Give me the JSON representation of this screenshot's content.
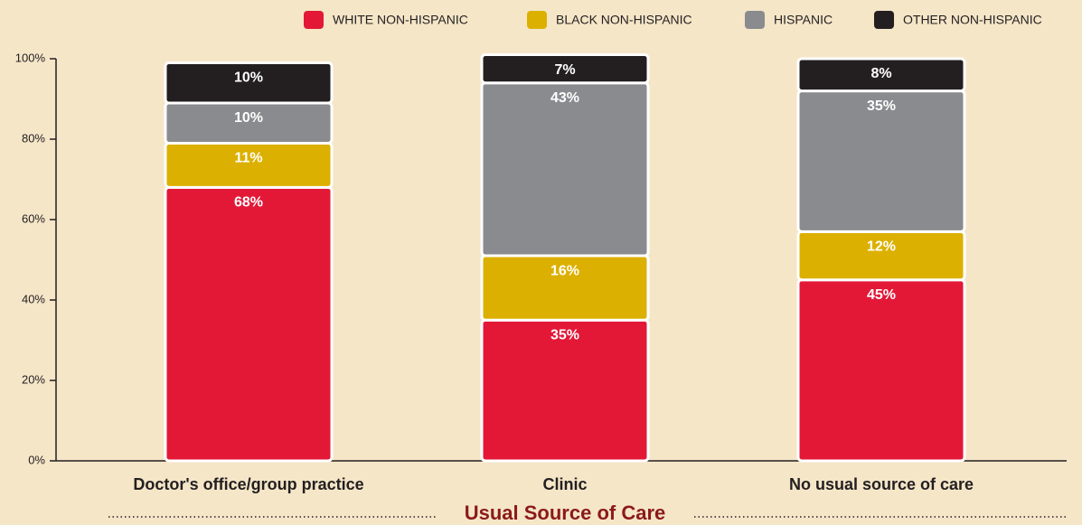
{
  "chart_data": {
    "type": "stacked_bar",
    "x_label": "Usual Source of Care",
    "categories": [
      "Doctor's office/group practice",
      "Clinic",
      "No usual source of care"
    ],
    "series": [
      {
        "name": "WHITE NON-HISPANIC",
        "color": "#e31837",
        "values": [
          68,
          35,
          45
        ],
        "value_labels": [
          "68%",
          "35%",
          "45%"
        ]
      },
      {
        "name": "BLACK NON-HISPANIC",
        "color": "#dcb000",
        "values": [
          11,
          16,
          12
        ],
        "value_labels": [
          "11%",
          "16%",
          "12%"
        ]
      },
      {
        "name": "HISPANIC",
        "color": "#8a8b8e",
        "values": [
          10,
          43,
          35
        ],
        "value_labels": [
          "10%",
          "43%",
          "35%"
        ]
      },
      {
        "name": "OTHER NON-HISPANIC",
        "color": "#231f20",
        "values": [
          10,
          7,
          8
        ],
        "value_labels": [
          "10%",
          "7%",
          "8%"
        ]
      }
    ],
    "ylim": [
      0,
      100
    ],
    "yticks": [
      {
        "value": 0,
        "label": "0%"
      },
      {
        "value": 20,
        "label": "20%"
      },
      {
        "value": 40,
        "label": "40%"
      },
      {
        "value": 60,
        "label": "60%"
      },
      {
        "value": 80,
        "label": "80%"
      },
      {
        "value": 100,
        "label": "100%"
      }
    ],
    "legend": "top-right"
  }
}
